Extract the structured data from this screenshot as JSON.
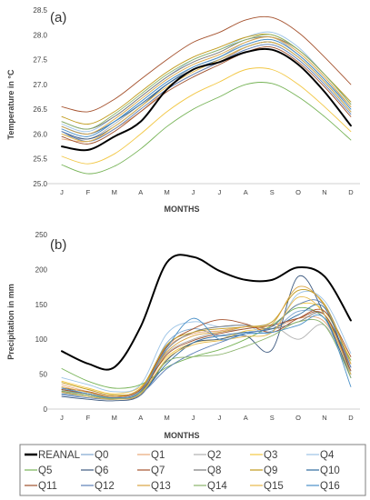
{
  "chart_data": [
    {
      "type": "line",
      "panel_label": "(a)",
      "title": "",
      "xlabel": "MONTHS",
      "ylabel": "Temperature in °C",
      "ylim": [
        25.0,
        28.5
      ],
      "yticks": [
        "25.0",
        "25.5",
        "26.0",
        "26.5",
        "27.0",
        "27.5",
        "28.0",
        "28.5"
      ],
      "categories": [
        "J",
        "F",
        "M",
        "A",
        "M",
        "J",
        "J",
        "A",
        "S",
        "O",
        "N",
        "D"
      ],
      "grid": false,
      "series": [
        {
          "name": "REANAL",
          "color": "#000000",
          "width": 2.0,
          "values": [
            25.75,
            25.68,
            25.95,
            26.25,
            26.9,
            27.3,
            27.45,
            27.65,
            27.7,
            27.4,
            26.85,
            26.17
          ]
        },
        {
          "name": "Q0",
          "color": "#7ea7d0",
          "width": 0.9,
          "values": [
            26.1,
            25.95,
            26.25,
            26.65,
            27.05,
            27.35,
            27.55,
            27.8,
            27.9,
            27.6,
            27.1,
            26.5
          ]
        },
        {
          "name": "Q1",
          "color": "#e8a878",
          "width": 0.9,
          "values": [
            25.9,
            25.85,
            26.1,
            26.45,
            26.9,
            27.2,
            27.45,
            27.75,
            27.85,
            27.55,
            27.05,
            26.45
          ]
        },
        {
          "name": "Q2",
          "color": "#b0b0b0",
          "width": 0.9,
          "values": [
            26.0,
            25.9,
            26.2,
            26.6,
            27.0,
            27.35,
            27.55,
            27.85,
            27.95,
            27.6,
            27.1,
            26.55
          ]
        },
        {
          "name": "Q3",
          "color": "#f2c744",
          "width": 0.9,
          "values": [
            25.55,
            25.4,
            25.6,
            26.0,
            26.45,
            26.8,
            27.05,
            27.3,
            27.3,
            27.0,
            26.55,
            26.05
          ]
        },
        {
          "name": "Q4",
          "color": "#9cc3e6",
          "width": 0.9,
          "values": [
            26.2,
            26.05,
            26.35,
            26.75,
            27.15,
            27.5,
            27.7,
            27.95,
            28.05,
            27.75,
            27.2,
            26.65
          ]
        },
        {
          "name": "Q5",
          "color": "#76b356",
          "width": 0.9,
          "values": [
            25.38,
            25.2,
            25.35,
            25.7,
            26.15,
            26.5,
            26.75,
            27.0,
            27.02,
            26.75,
            26.35,
            25.88
          ]
        },
        {
          "name": "Q6",
          "color": "#3d5a80",
          "width": 0.9,
          "values": [
            26.05,
            25.9,
            26.15,
            26.55,
            27.0,
            27.3,
            27.5,
            27.75,
            27.85,
            27.55,
            27.05,
            26.45
          ]
        },
        {
          "name": "Q7",
          "color": "#a5522e",
          "width": 0.9,
          "values": [
            26.55,
            26.45,
            26.7,
            27.1,
            27.5,
            27.85,
            28.05,
            28.3,
            28.35,
            28.05,
            27.55,
            27.0
          ]
        },
        {
          "name": "Q8",
          "color": "#7a7a7a",
          "width": 0.9,
          "values": [
            26.25,
            26.1,
            26.35,
            26.75,
            27.15,
            27.45,
            27.65,
            27.9,
            27.95,
            27.7,
            27.2,
            26.6
          ]
        },
        {
          "name": "Q9",
          "color": "#c09a1a",
          "width": 0.9,
          "values": [
            26.35,
            26.2,
            26.45,
            26.85,
            27.25,
            27.55,
            27.75,
            27.95,
            28.0,
            27.7,
            27.2,
            26.65
          ]
        },
        {
          "name": "Q10",
          "color": "#2e6b9e",
          "width": 0.9,
          "values": [
            26.15,
            26.0,
            26.25,
            26.6,
            27.0,
            27.3,
            27.5,
            27.75,
            27.85,
            27.55,
            27.05,
            26.45
          ]
        },
        {
          "name": "Q11",
          "color": "#9e4f2b",
          "width": 0.9,
          "values": [
            25.95,
            25.8,
            26.05,
            26.45,
            26.85,
            27.15,
            27.4,
            27.65,
            27.75,
            27.45,
            26.95,
            26.35
          ]
        },
        {
          "name": "Q12",
          "color": "#5b7fb6",
          "width": 0.9,
          "values": [
            26.05,
            25.85,
            26.1,
            26.5,
            26.9,
            27.2,
            27.45,
            27.7,
            27.8,
            27.5,
            27.0,
            26.4
          ]
        },
        {
          "name": "Q13",
          "color": "#d9a441",
          "width": 0.9,
          "values": [
            26.15,
            26.0,
            26.3,
            26.7,
            27.1,
            27.4,
            27.6,
            27.85,
            27.95,
            27.65,
            27.15,
            26.55
          ]
        },
        {
          "name": "Q14",
          "color": "#8ab36a",
          "width": 0.9,
          "values": [
            26.25,
            26.1,
            26.4,
            26.8,
            27.2,
            27.5,
            27.7,
            27.9,
            28.0,
            27.7,
            27.2,
            26.6
          ]
        },
        {
          "name": "Q15",
          "color": "#e7b94a",
          "width": 0.9,
          "values": [
            26.0,
            25.85,
            26.15,
            26.55,
            26.95,
            27.25,
            27.5,
            27.75,
            27.85,
            27.55,
            27.05,
            26.45
          ]
        },
        {
          "name": "Q16",
          "color": "#4a90c8",
          "width": 0.9,
          "values": [
            26.1,
            25.95,
            26.25,
            26.65,
            27.05,
            27.35,
            27.55,
            27.8,
            27.9,
            27.6,
            27.1,
            26.5
          ]
        }
      ]
    },
    {
      "type": "line",
      "panel_label": "(b)",
      "title": "",
      "xlabel": "MONTHS",
      "ylabel": "Precipitation in mm",
      "ylim": [
        0,
        250
      ],
      "yticks": [
        "0",
        "50",
        "100",
        "150",
        "200",
        "250"
      ],
      "categories": [
        "J",
        "F",
        "M",
        "A",
        "M",
        "J",
        "J",
        "A",
        "S",
        "O",
        "N",
        "D"
      ],
      "grid": false,
      "series": [
        {
          "name": "REANAL",
          "color": "#000000",
          "width": 2.0,
          "values": [
            83,
            65,
            60,
            118,
            210,
            218,
            198,
            185,
            185,
            203,
            190,
            127
          ]
        },
        {
          "name": "Q0",
          "color": "#7ea7d0",
          "width": 0.9,
          "values": [
            28,
            20,
            15,
            25,
            95,
            115,
            105,
            108,
            112,
            140,
            130,
            55
          ]
        },
        {
          "name": "Q1",
          "color": "#e8a878",
          "width": 0.9,
          "values": [
            35,
            25,
            18,
            30,
            88,
            108,
            112,
            118,
            115,
            130,
            125,
            60
          ]
        },
        {
          "name": "Q2",
          "color": "#b0b0b0",
          "width": 0.9,
          "values": [
            30,
            22,
            17,
            28,
            80,
            100,
            110,
            115,
            120,
            100,
            120,
            50
          ]
        },
        {
          "name": "Q3",
          "color": "#f2c744",
          "width": 0.9,
          "values": [
            40,
            30,
            22,
            32,
            75,
            95,
            100,
            112,
            118,
            150,
            140,
            70
          ]
        },
        {
          "name": "Q4",
          "color": "#9cc3e6",
          "width": 0.9,
          "values": [
            45,
            35,
            25,
            35,
            108,
            125,
            118,
            120,
            110,
            165,
            155,
            80
          ]
        },
        {
          "name": "Q5",
          "color": "#76b356",
          "width": 0.9,
          "values": [
            58,
            40,
            30,
            35,
            60,
            75,
            85,
            100,
            120,
            145,
            130,
            70
          ]
        },
        {
          "name": "Q6",
          "color": "#3d5a80",
          "width": 0.9,
          "values": [
            18,
            14,
            12,
            20,
            70,
            95,
            100,
            105,
            85,
            190,
            135,
            45
          ]
        },
        {
          "name": "Q7",
          "color": "#a5522e",
          "width": 0.9,
          "values": [
            30,
            25,
            18,
            28,
            90,
            115,
            128,
            122,
            110,
            130,
            140,
            75
          ]
        },
        {
          "name": "Q8",
          "color": "#7a7a7a",
          "width": 0.9,
          "values": [
            25,
            20,
            15,
            22,
            85,
            110,
            118,
            120,
            115,
            125,
            135,
            60
          ]
        },
        {
          "name": "Q9",
          "color": "#c09a1a",
          "width": 0.9,
          "values": [
            38,
            28,
            20,
            30,
            92,
            110,
            115,
            118,
            125,
            170,
            150,
            65
          ]
        },
        {
          "name": "Q10",
          "color": "#2e6b9e",
          "width": 0.9,
          "values": [
            22,
            18,
            14,
            22,
            65,
            95,
            105,
            110,
            115,
            135,
            145,
            50
          ]
        },
        {
          "name": "Q11",
          "color": "#9e4f2b",
          "width": 0.9,
          "values": [
            28,
            22,
            16,
            25,
            78,
            98,
            108,
            115,
            120,
            130,
            135,
            55
          ]
        },
        {
          "name": "Q12",
          "color": "#5b7fb6",
          "width": 0.9,
          "values": [
            20,
            16,
            14,
            22,
            58,
            80,
            95,
            108,
            118,
            150,
            148,
            60
          ]
        },
        {
          "name": "Q13",
          "color": "#d9a441",
          "width": 0.9,
          "values": [
            32,
            24,
            18,
            30,
            82,
            105,
            110,
            118,
            122,
            175,
            148,
            65
          ]
        },
        {
          "name": "Q14",
          "color": "#8ab36a",
          "width": 0.9,
          "values": [
            26,
            20,
            15,
            24,
            68,
            75,
            78,
            90,
            105,
            125,
            120,
            45
          ]
        },
        {
          "name": "Q15",
          "color": "#e7b94a",
          "width": 0.9,
          "values": [
            24,
            18,
            14,
            22,
            72,
            92,
            98,
            104,
            110,
            160,
            135,
            50
          ]
        },
        {
          "name": "Q16",
          "color": "#4a90c8",
          "width": 0.9,
          "values": [
            30,
            22,
            16,
            26,
            88,
            130,
            100,
            108,
            110,
            120,
            130,
            32
          ]
        }
      ]
    }
  ],
  "legend": {
    "placement": "bottom",
    "columns": 6,
    "entries": [
      "REANAL",
      "Q0",
      "Q1",
      "Q2",
      "Q3",
      "Q4",
      "Q5",
      "Q6",
      "Q7",
      "Q8",
      "Q9",
      "Q10",
      "Q11",
      "Q12",
      "Q13",
      "Q14",
      "Q15",
      "Q16"
    ]
  }
}
